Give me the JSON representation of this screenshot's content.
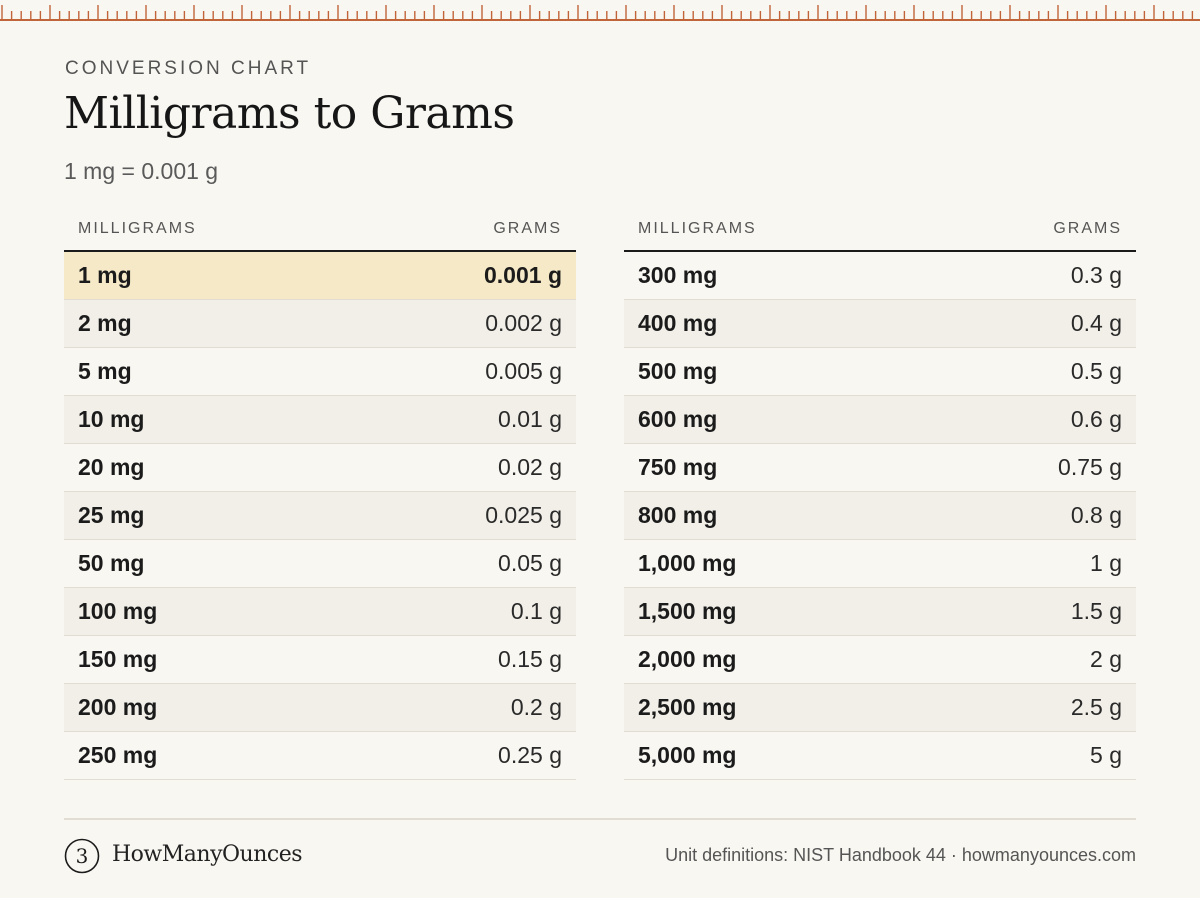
{
  "header": {
    "eyebrow": "CONVERSION CHART",
    "title": "Milligrams to Grams",
    "subtitle": "1 mg = 0.001 g"
  },
  "table": {
    "col_milligrams": "MILLIGRAMS",
    "col_grams": "GRAMS",
    "left_rows": [
      {
        "mg": "1 mg",
        "g": "0.001 g"
      },
      {
        "mg": "2 mg",
        "g": "0.002 g"
      },
      {
        "mg": "5 mg",
        "g": "0.005 g"
      },
      {
        "mg": "10 mg",
        "g": "0.01 g"
      },
      {
        "mg": "20 mg",
        "g": "0.02 g"
      },
      {
        "mg": "25 mg",
        "g": "0.025 g"
      },
      {
        "mg": "50 mg",
        "g": "0.05 g"
      },
      {
        "mg": "100 mg",
        "g": "0.1 g"
      },
      {
        "mg": "150 mg",
        "g": "0.15 g"
      },
      {
        "mg": "200 mg",
        "g": "0.2 g"
      },
      {
        "mg": "250 mg",
        "g": "0.25 g"
      }
    ],
    "right_rows": [
      {
        "mg": "300 mg",
        "g": "0.3 g"
      },
      {
        "mg": "400 mg",
        "g": "0.4 g"
      },
      {
        "mg": "500 mg",
        "g": "0.5 g"
      },
      {
        "mg": "600 mg",
        "g": "0.6 g"
      },
      {
        "mg": "750 mg",
        "g": "0.75 g"
      },
      {
        "mg": "800 mg",
        "g": "0.8 g"
      },
      {
        "mg": "1,000 mg",
        "g": "1 g"
      },
      {
        "mg": "1,500 mg",
        "g": "1.5 g"
      },
      {
        "mg": "2,000 mg",
        "g": "2 g"
      },
      {
        "mg": "2,500 mg",
        "g": "2.5 g"
      },
      {
        "mg": "5,000 mg",
        "g": "5 g"
      }
    ]
  },
  "footer": {
    "logo_glyph": "3",
    "brand": "HowManyOunces",
    "credit": "Unit definitions: NIST Handbook 44 · howmanyounces.com"
  },
  "colors": {
    "ruler": "#c0653a",
    "highlight_row": "#f5e9c7",
    "alt_row": "#f2efe8",
    "background": "#f9f7f2"
  },
  "icons": {
    "ruler": "ruler-ticks-icon",
    "logo": "brand-logo-icon"
  }
}
